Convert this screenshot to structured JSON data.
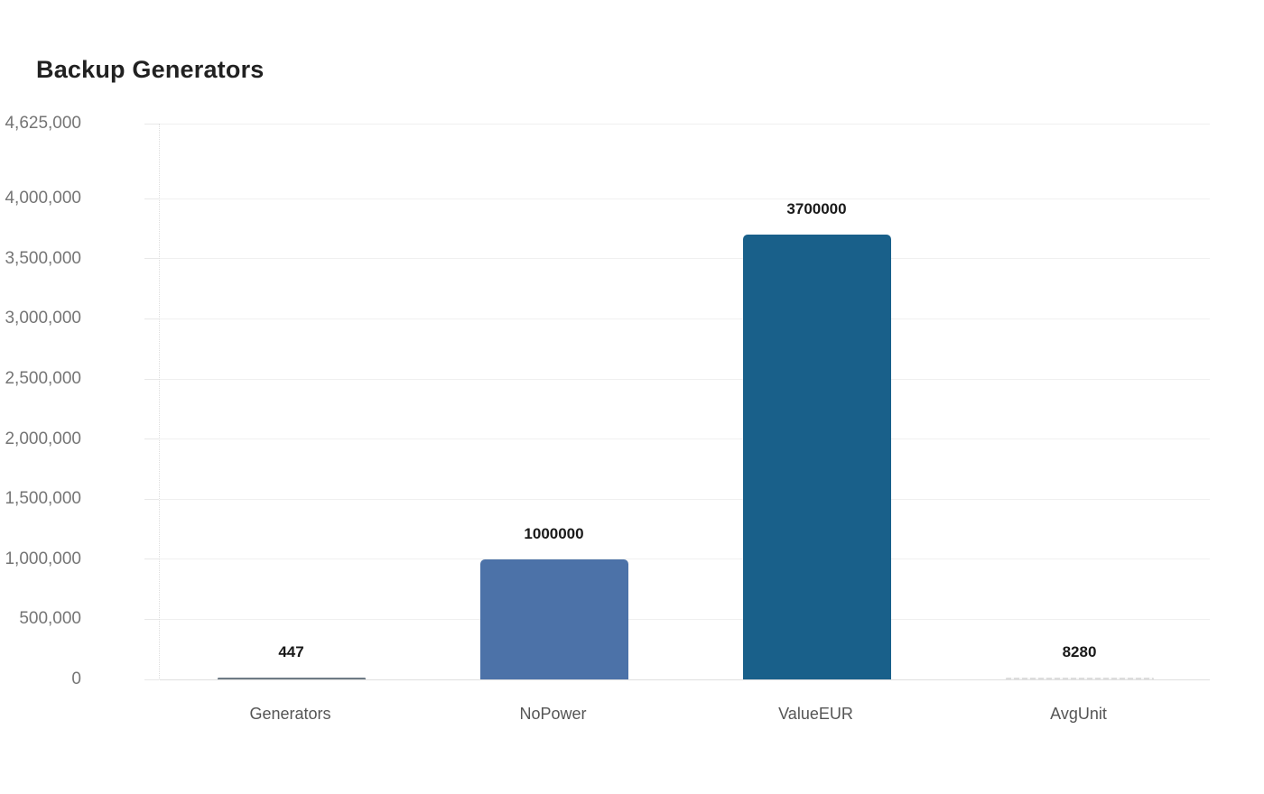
{
  "chart_data": {
    "type": "bar",
    "title": "Backup Generators",
    "xlabel": "",
    "ylabel": "",
    "categories": [
      "Generators",
      "NoPower",
      "ValueEUR",
      "AvgUnit"
    ],
    "values": [
      447,
      1000000,
      3700000,
      8280
    ],
    "data_labels": [
      "447",
      "1000000",
      "3700000",
      "8280"
    ],
    "bar_colors": [
      "#6e7b85",
      "#4c72a8",
      "#19608a",
      "#dcdcdc"
    ],
    "bar_styles": [
      "solid",
      "solid",
      "solid",
      "dashed"
    ],
    "ylim": [
      0,
      4625000
    ],
    "grid": true,
    "legend_position": "none",
    "y_ticks": [
      {
        "value": 0,
        "label": "0"
      },
      {
        "value": 500000,
        "label": "500,000"
      },
      {
        "value": 1000000,
        "label": "1,000,000"
      },
      {
        "value": 1500000,
        "label": "1,500,000"
      },
      {
        "value": 2000000,
        "label": "2,000,000"
      },
      {
        "value": 2500000,
        "label": "2,500,000"
      },
      {
        "value": 3000000,
        "label": "3,000,000"
      },
      {
        "value": 3500000,
        "label": "3,500,000"
      },
      {
        "value": 4000000,
        "label": "4,000,000"
      },
      {
        "value": 4625000,
        "label": "4,625,000"
      }
    ],
    "colors": {
      "background": "#ffffff",
      "title_text": "#212121",
      "tick_label_text": "#757575",
      "category_label_text": "#555555",
      "value_label_text": "#1a1a1a",
      "gridline": "#f0f0f0",
      "baseline": "#e0e0e0"
    }
  }
}
